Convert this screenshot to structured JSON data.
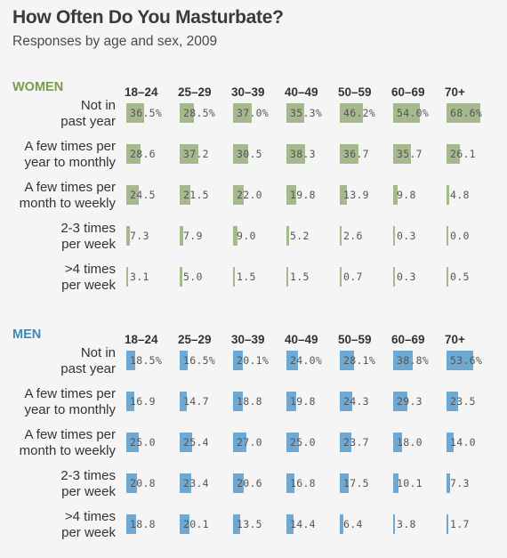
{
  "title": "How Often Do You Masturbate?",
  "subtitle": "Responses by age and sex, 2009",
  "colors": {
    "women": "#7a9a4e",
    "women_bar": "#a6b88e",
    "men": "#3f87b8",
    "men_bar": "#6fa8d0"
  },
  "chart_data": {
    "type": "table",
    "age_groups": [
      "18–24",
      "25–29",
      "30–39",
      "40–49",
      "50–59",
      "60–69",
      "70+"
    ],
    "categories": [
      "Not in past year",
      "A few times per year to monthly",
      "A few times per month to weekly",
      "2-3 times per week",
      ">4 times per week"
    ],
    "sections": [
      {
        "name": "WOMEN",
        "rows": [
          {
            "label_lines": [
              "Not in",
              "past year"
            ],
            "values": [
              36.5,
              28.5,
              37.0,
              35.3,
              46.2,
              54.0,
              68.6
            ],
            "labels": [
              "36.5%",
              "28.5%",
              "37.0%",
              "35.3%",
              "46.2%",
              "54.0%",
              "68.6%"
            ]
          },
          {
            "label_lines": [
              "A few times per",
              "year to monthly"
            ],
            "values": [
              28.6,
              37.2,
              30.5,
              38.3,
              36.7,
              35.7,
              26.1
            ],
            "labels": [
              "28.6",
              "37.2",
              "30.5",
              "38.3",
              "36.7",
              "35.7",
              "26.1"
            ]
          },
          {
            "label_lines": [
              "A few times per",
              "month to weekly"
            ],
            "values": [
              24.5,
              21.5,
              22.0,
              19.8,
              13.9,
              9.8,
              4.8
            ],
            "labels": [
              "24.5",
              "21.5",
              "22.0",
              "19.8",
              "13.9",
              "9.8",
              "4.8"
            ]
          },
          {
            "label_lines": [
              "2-3 times",
              "per week"
            ],
            "values": [
              7.3,
              7.9,
              9.0,
              5.2,
              2.6,
              0.3,
              0.0
            ],
            "labels": [
              "7.3",
              "7.9",
              "9.0",
              "5.2",
              "2.6",
              "0.3",
              "0.0"
            ]
          },
          {
            "label_lines": [
              ">4 times",
              "per week"
            ],
            "values": [
              3.1,
              5.0,
              1.5,
              1.5,
              0.7,
              0.3,
              0.5
            ],
            "labels": [
              "3.1",
              "5.0",
              "1.5",
              "1.5",
              "0.7",
              "0.3",
              "0.5"
            ]
          }
        ]
      },
      {
        "name": "MEN",
        "rows": [
          {
            "label_lines": [
              "Not in",
              "past year"
            ],
            "values": [
              18.5,
              16.5,
              20.1,
              24.0,
              28.1,
              38.8,
              53.6
            ],
            "labels": [
              "18.5%",
              "16.5%",
              "20.1%",
              "24.0%",
              "28.1%",
              "38.8%",
              "53.6%"
            ]
          },
          {
            "label_lines": [
              "A few times per",
              "year to monthly"
            ],
            "values": [
              16.9,
              14.7,
              18.8,
              19.8,
              24.3,
              29.3,
              23.5
            ],
            "labels": [
              "16.9",
              "14.7",
              "18.8",
              "19.8",
              "24.3",
              "29.3",
              "23.5"
            ]
          },
          {
            "label_lines": [
              "A few times per",
              "month to weekly"
            ],
            "values": [
              25.0,
              25.4,
              27.0,
              25.0,
              23.7,
              18.0,
              14.0
            ],
            "labels": [
              "25.0",
              "25.4",
              "27.0",
              "25.0",
              "23.7",
              "18.0",
              "14.0"
            ]
          },
          {
            "label_lines": [
              "2-3 times",
              "per week"
            ],
            "values": [
              20.8,
              23.4,
              20.6,
              16.8,
              17.5,
              10.1,
              7.3
            ],
            "labels": [
              "20.8",
              "23.4",
              "20.6",
              "16.8",
              "17.5",
              "10.1",
              "7.3"
            ]
          },
          {
            "label_lines": [
              ">4 times",
              "per week"
            ],
            "values": [
              18.8,
              20.1,
              13.5,
              14.4,
              6.4,
              3.8,
              1.7
            ],
            "labels": [
              "18.8",
              "20.1",
              "13.5",
              "14.4",
              "6.4",
              "3.8",
              "1.7"
            ]
          }
        ]
      }
    ]
  }
}
